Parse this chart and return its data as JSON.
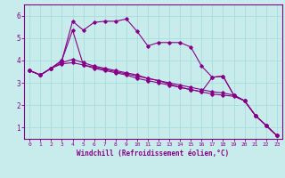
{
  "title": "",
  "xlabel": "Windchill (Refroidissement éolien,°C)",
  "bg_color": "#c8ecec",
  "line_color": "#880088",
  "grid_color": "#aadddd",
  "xlim": [
    -0.5,
    23.5
  ],
  "ylim": [
    0.5,
    6.5
  ],
  "xticks": [
    0,
    1,
    2,
    3,
    4,
    5,
    6,
    7,
    8,
    9,
    10,
    11,
    12,
    13,
    14,
    15,
    16,
    17,
    18,
    19,
    20,
    21,
    22,
    23
  ],
  "yticks": [
    1,
    2,
    3,
    4,
    5,
    6
  ],
  "series": {
    "line1_x": [
      0,
      1,
      2,
      3,
      4,
      5,
      6,
      7,
      8,
      9,
      10,
      11,
      12,
      13,
      14,
      15,
      16,
      17,
      18,
      19,
      20,
      21,
      22,
      23
    ],
    "line1_y": [
      3.55,
      3.35,
      3.65,
      4.0,
      5.35,
      3.8,
      3.65,
      3.55,
      3.45,
      3.35,
      3.2,
      3.1,
      3.0,
      2.9,
      2.8,
      2.7,
      2.6,
      3.25,
      3.3,
      2.45,
      2.2,
      1.55,
      1.1,
      0.65
    ],
    "line2_x": [
      0,
      1,
      2,
      3,
      4,
      5,
      6,
      7,
      8,
      9,
      10,
      11,
      12,
      13,
      14,
      15,
      16,
      17,
      18,
      19,
      20,
      21,
      22,
      23
    ],
    "line2_y": [
      3.55,
      3.35,
      3.65,
      4.0,
      5.75,
      5.35,
      5.7,
      5.75,
      5.75,
      5.85,
      5.3,
      4.65,
      4.8,
      4.8,
      4.8,
      4.6,
      3.75,
      3.25,
      3.3,
      2.45,
      2.2,
      1.55,
      1.1,
      0.65
    ],
    "line3_x": [
      0,
      1,
      2,
      3,
      4,
      5,
      6,
      7,
      8,
      9,
      10,
      11,
      12,
      13,
      14,
      15,
      16,
      17,
      18,
      19,
      20,
      21,
      22,
      23
    ],
    "line3_y": [
      3.55,
      3.35,
      3.65,
      3.9,
      4.05,
      3.9,
      3.75,
      3.65,
      3.55,
      3.45,
      3.35,
      3.2,
      3.1,
      3.0,
      2.9,
      2.8,
      2.7,
      2.6,
      2.55,
      2.45,
      2.2,
      1.55,
      1.1,
      0.65
    ],
    "line4_x": [
      0,
      1,
      2,
      3,
      4,
      5,
      6,
      7,
      8,
      9,
      10,
      11,
      12,
      13,
      14,
      15,
      16,
      17,
      18,
      19,
      20,
      21,
      22,
      23
    ],
    "line4_y": [
      3.55,
      3.35,
      3.65,
      3.85,
      3.9,
      3.8,
      3.7,
      3.6,
      3.5,
      3.4,
      3.3,
      3.2,
      3.1,
      2.95,
      2.8,
      2.7,
      2.6,
      2.5,
      2.45,
      2.4,
      2.2,
      1.55,
      1.1,
      0.65
    ]
  }
}
